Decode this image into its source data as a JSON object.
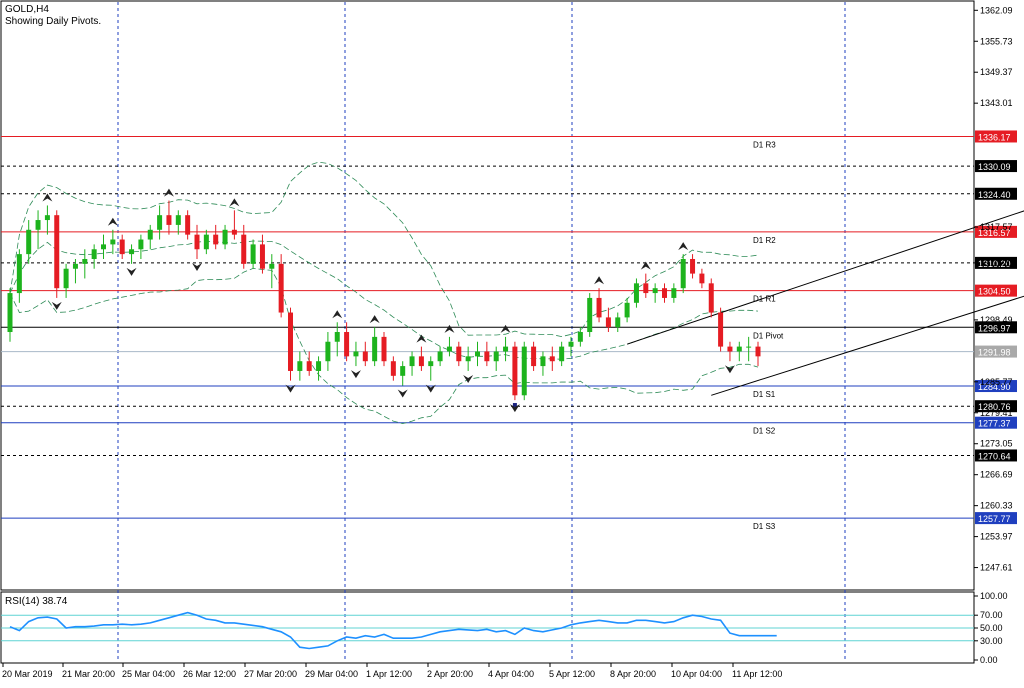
{
  "header": {
    "symbol": "GOLD,H4",
    "subtitle": "Showing Daily Pivots."
  },
  "chart_data": {
    "type": "candlestick",
    "price_ylim": [
      1243,
      1364
    ],
    "price_ticks": [
      "1362.09",
      "1355.73",
      "1349.37",
      "1343.01",
      "1317.57",
      "1310.20",
      "1298.49",
      "1285.77",
      "1279.41",
      "1273.05",
      "1266.69",
      "1260.33",
      "1253.97",
      "1247.61"
    ],
    "x_tick_labels": [
      "20 Mar 2019",
      "21 Mar 20:00",
      "25 Mar 04:00",
      "26 Mar 12:00",
      "27 Mar 20:00",
      "29 Mar 04:00",
      "1 Apr 12:00",
      "2 Apr 20:00",
      "4 Apr 04:00",
      "5 Apr 12:00",
      "8 Apr 20:00",
      "10 Apr 04:00",
      "11 Apr 12:00"
    ],
    "pivots": [
      {
        "name": "D1 R3",
        "value": 1336.17,
        "label": "1336.17",
        "color": "#e51c23"
      },
      {
        "name": "D1 R2",
        "value": 1316.57,
        "label": "1316.57",
        "color": "#e51c23"
      },
      {
        "name": "D1 R1",
        "value": 1304.5,
        "label": "1304.50",
        "color": "#e51c23"
      },
      {
        "name": "D1 Pivot",
        "value": 1296.97,
        "label": "1296.97",
        "color": "#000000"
      },
      {
        "name": "D1 S1",
        "value": 1284.9,
        "label": "1284.90",
        "color": "#1f3fbf"
      },
      {
        "name": "D1 S2",
        "value": 1277.37,
        "label": "1277.37",
        "color": "#1f3fbf"
      },
      {
        "name": "D1 S3",
        "value": 1257.77,
        "label": "1257.77",
        "color": "#1f3fbf"
      }
    ],
    "dashed_levels": [
      {
        "value": 1330.09,
        "label": "1330.09"
      },
      {
        "value": 1324.4,
        "label": "1324.40"
      },
      {
        "value": 1310.2,
        "label": "1310.20"
      },
      {
        "value": 1280.76,
        "label": "1280.76"
      },
      {
        "value": 1270.64,
        "label": "1270.64"
      }
    ],
    "current_price": {
      "value": 1291.98,
      "label": "1291.98"
    },
    "candles_ohlc": [
      [
        1296,
        1305,
        1294,
        1304
      ],
      [
        1304,
        1313,
        1302,
        1312
      ],
      [
        1312,
        1319,
        1310,
        1317
      ],
      [
        1317,
        1321,
        1313,
        1319
      ],
      [
        1319,
        1322,
        1316,
        1320
      ],
      [
        1320,
        1321,
        1303,
        1305
      ],
      [
        1305,
        1310,
        1303,
        1309
      ],
      [
        1309,
        1311,
        1306,
        1310
      ],
      [
        1310,
        1313,
        1307,
        1311
      ],
      [
        1311,
        1314,
        1309,
        1313
      ],
      [
        1313,
        1316,
        1311,
        1314
      ],
      [
        1314,
        1317,
        1312,
        1315
      ],
      [
        1315,
        1316,
        1311,
        1312
      ],
      [
        1312,
        1314,
        1310,
        1313
      ],
      [
        1313,
        1316,
        1311,
        1315
      ],
      [
        1315,
        1318,
        1313,
        1317
      ],
      [
        1317,
        1322,
        1315,
        1320
      ],
      [
        1320,
        1323,
        1316,
        1318
      ],
      [
        1318,
        1321,
        1316,
        1320
      ],
      [
        1320,
        1321,
        1315,
        1316
      ],
      [
        1316,
        1318,
        1311,
        1313
      ],
      [
        1313,
        1317,
        1312,
        1316
      ],
      [
        1316,
        1318,
        1313,
        1314
      ],
      [
        1314,
        1318,
        1313,
        1317
      ],
      [
        1317,
        1321,
        1315,
        1316
      ],
      [
        1316,
        1318,
        1309,
        1310
      ],
      [
        1310,
        1315,
        1309,
        1314
      ],
      [
        1314,
        1316,
        1308,
        1309
      ],
      [
        1309,
        1312,
        1305,
        1310
      ],
      [
        1310,
        1312,
        1299,
        1300
      ],
      [
        1300,
        1301,
        1286,
        1288
      ],
      [
        1288,
        1292,
        1286,
        1290
      ],
      [
        1290,
        1292,
        1287,
        1288
      ],
      [
        1288,
        1291,
        1286,
        1290
      ],
      [
        1290,
        1296,
        1288,
        1294
      ],
      [
        1294,
        1298,
        1291,
        1296
      ],
      [
        1296,
        1298,
        1290,
        1291
      ],
      [
        1291,
        1294,
        1289,
        1292
      ],
      [
        1292,
        1294,
        1289,
        1290
      ],
      [
        1290,
        1297,
        1289,
        1295
      ],
      [
        1295,
        1296,
        1289,
        1290
      ],
      [
        1290,
        1291,
        1286,
        1287
      ],
      [
        1287,
        1290,
        1285,
        1289
      ],
      [
        1289,
        1292,
        1287,
        1291
      ],
      [
        1291,
        1293,
        1288,
        1289
      ],
      [
        1289,
        1291,
        1286,
        1290
      ],
      [
        1290,
        1293,
        1289,
        1292
      ],
      [
        1292,
        1295,
        1291,
        1293
      ],
      [
        1293,
        1294,
        1289,
        1290
      ],
      [
        1290,
        1293,
        1288,
        1291
      ],
      [
        1291,
        1294,
        1289,
        1292
      ],
      [
        1292,
        1294,
        1289,
        1290
      ],
      [
        1290,
        1293,
        1288,
        1292
      ],
      [
        1292,
        1295,
        1290,
        1293
      ],
      [
        1293,
        1294,
        1282,
        1283
      ],
      [
        1283,
        1294,
        1282,
        1293
      ],
      [
        1293,
        1294,
        1288,
        1289
      ],
      [
        1289,
        1292,
        1287,
        1291
      ],
      [
        1291,
        1293,
        1288,
        1290
      ],
      [
        1290,
        1294,
        1289,
        1293
      ],
      [
        1293,
        1295,
        1291,
        1294
      ],
      [
        1294,
        1297,
        1293,
        1296
      ],
      [
        1296,
        1304,
        1295,
        1303
      ],
      [
        1303,
        1305,
        1298,
        1299
      ],
      [
        1299,
        1301,
        1296,
        1297
      ],
      [
        1297,
        1300,
        1296,
        1299
      ],
      [
        1299,
        1303,
        1298,
        1302
      ],
      [
        1302,
        1307,
        1301,
        1306
      ],
      [
        1306,
        1308,
        1303,
        1304
      ],
      [
        1304,
        1306,
        1302,
        1305
      ],
      [
        1305,
        1306,
        1302,
        1303
      ],
      [
        1303,
        1306,
        1302,
        1305
      ],
      [
        1305,
        1312,
        1304,
        1311
      ],
      [
        1311,
        1312,
        1307,
        1308
      ],
      [
        1308,
        1309,
        1305,
        1306
      ],
      [
        1306,
        1307,
        1299,
        1300
      ],
      [
        1300,
        1301,
        1292,
        1293
      ],
      [
        1293,
        1294,
        1290,
        1292
      ],
      [
        1292,
        1294,
        1290,
        1293
      ],
      [
        1293,
        1295,
        1290,
        1293
      ],
      [
        1293,
        1294,
        1289,
        1291
      ]
    ],
    "channel_lines": [
      {
        "from": [
          66,
          1293.5
        ],
        "to": [
          135,
          1338
        ]
      },
      {
        "from": [
          75,
          1283
        ],
        "to": [
          135,
          1319.5
        ]
      }
    ],
    "rsi": {
      "label": "RSI(14) 38.74",
      "value": 38.74,
      "ylim": [
        0,
        100
      ],
      "levels": [
        70,
        50,
        30
      ],
      "ticks": [
        "100.00",
        "70.00",
        "50.00",
        "30.00",
        "0.00"
      ],
      "values": [
        52,
        46,
        60,
        66,
        67,
        64,
        50,
        52,
        52,
        53,
        55,
        55,
        56,
        55,
        56,
        58,
        62,
        66,
        70,
        74,
        70,
        64,
        62,
        58,
        58,
        56,
        54,
        52,
        48,
        44,
        36,
        20,
        18,
        20,
        22,
        30,
        36,
        34,
        38,
        36,
        40,
        34,
        34,
        34,
        36,
        40,
        44,
        46,
        48,
        47,
        46,
        48,
        44,
        46,
        40,
        50,
        46,
        44,
        47,
        50,
        55,
        58,
        60,
        62,
        60,
        58,
        58,
        62,
        62,
        60,
        58,
        60,
        66,
        70,
        68,
        64,
        62,
        42,
        38,
        38,
        38,
        38,
        38
      ]
    }
  }
}
